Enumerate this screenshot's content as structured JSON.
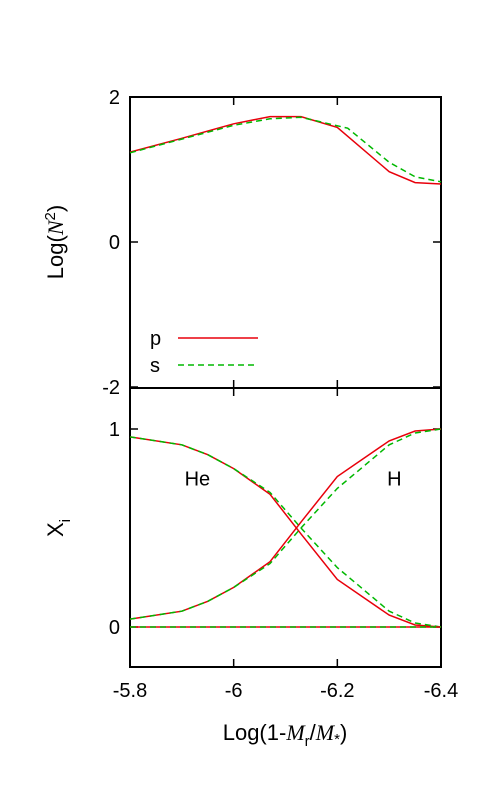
{
  "chart_data": [
    {
      "type": "line",
      "ylabel_prefix": "Log(",
      "ylabel_var": "N",
      "ylabel_sup": "2",
      "ylabel_suffix": ")",
      "xlim": [
        -5.8,
        -6.4
      ],
      "ylim": [
        -2,
        2
      ],
      "yticks": [
        2,
        0,
        -2
      ],
      "ytick_labels": [
        "2",
        "0",
        "-2"
      ],
      "xticks": [
        -5.8,
        -6.0,
        -6.2,
        -6.4
      ],
      "legend_position": "bottom-left",
      "series": [
        {
          "name": "p",
          "color": "#e8000b",
          "style": "solid",
          "x": [
            -5.8,
            -5.9,
            -6.0,
            -6.07,
            -6.13,
            -6.2,
            -6.3,
            -6.35,
            -6.4
          ],
          "y": [
            1.24,
            1.43,
            1.63,
            1.73,
            1.73,
            1.58,
            0.97,
            0.82,
            0.8
          ]
        },
        {
          "name": "s",
          "color": "#00b800",
          "style": "dashed",
          "x": [
            -5.8,
            -5.9,
            -6.0,
            -6.07,
            -6.13,
            -6.22,
            -6.3,
            -6.35,
            -6.4
          ],
          "y": [
            1.23,
            1.42,
            1.61,
            1.7,
            1.72,
            1.57,
            1.1,
            0.9,
            0.83
          ]
        }
      ]
    },
    {
      "type": "line",
      "ylabel_main": "X",
      "ylabel_sub": "i",
      "xlabel_prefix": "Log(1-",
      "xlabel_var1": "M",
      "xlabel_sub1": "r",
      "xlabel_slash": "/",
      "xlabel_var2": "M",
      "xlabel_sub2": "*",
      "xlabel_suffix": ")",
      "xlim": [
        -5.8,
        -6.4
      ],
      "ylim": [
        -0.2,
        1.05
      ],
      "yticks": [
        1,
        0
      ],
      "ytick_labels": [
        "1",
        "0"
      ],
      "xticks": [
        -5.8,
        -6.0,
        -6.2,
        -6.4
      ],
      "xtick_labels": [
        "-5.8",
        "-6",
        "-6.2",
        "-6.4"
      ],
      "annotations": [
        {
          "text": "He",
          "x": -5.93,
          "y": 0.75
        },
        {
          "text": "H",
          "x": -6.31,
          "y": 0.75
        }
      ],
      "series": [
        {
          "name": "p He",
          "color": "#e8000b",
          "style": "solid",
          "x": [
            -5.8,
            -5.9,
            -5.95,
            -6.0,
            -6.07,
            -6.13,
            -6.2,
            -6.3,
            -6.35,
            -6.4
          ],
          "y": [
            0.96,
            0.92,
            0.87,
            0.8,
            0.67,
            0.47,
            0.24,
            0.06,
            0.01,
            0.0
          ]
        },
        {
          "name": "s He",
          "color": "#00b800",
          "style": "dashed",
          "x": [
            -5.8,
            -5.9,
            -5.95,
            -6.0,
            -6.07,
            -6.13,
            -6.2,
            -6.3,
            -6.35,
            -6.4
          ],
          "y": [
            0.96,
            0.92,
            0.87,
            0.8,
            0.68,
            0.5,
            0.3,
            0.08,
            0.02,
            0.0
          ]
        },
        {
          "name": "p H",
          "color": "#e8000b",
          "style": "solid",
          "x": [
            -5.8,
            -5.9,
            -5.95,
            -6.0,
            -6.07,
            -6.13,
            -6.2,
            -6.3,
            -6.35,
            -6.4
          ],
          "y": [
            0.04,
            0.08,
            0.13,
            0.2,
            0.33,
            0.53,
            0.76,
            0.94,
            0.99,
            1.0
          ]
        },
        {
          "name": "s H",
          "color": "#00b800",
          "style": "dashed",
          "x": [
            -5.8,
            -5.9,
            -5.95,
            -6.0,
            -6.07,
            -6.13,
            -6.2,
            -6.3,
            -6.35,
            -6.4
          ],
          "y": [
            0.04,
            0.08,
            0.13,
            0.2,
            0.32,
            0.5,
            0.7,
            0.92,
            0.98,
            1.0
          ]
        },
        {
          "name": "p zero",
          "color": "#e8000b",
          "style": "solid",
          "x": [
            -5.8,
            -6.4
          ],
          "y": [
            0.0,
            0.0
          ]
        },
        {
          "name": "s zero",
          "color": "#00b800",
          "style": "dashed",
          "x": [
            -5.8,
            -6.4
          ],
          "y": [
            0.0,
            0.0
          ]
        }
      ]
    }
  ]
}
